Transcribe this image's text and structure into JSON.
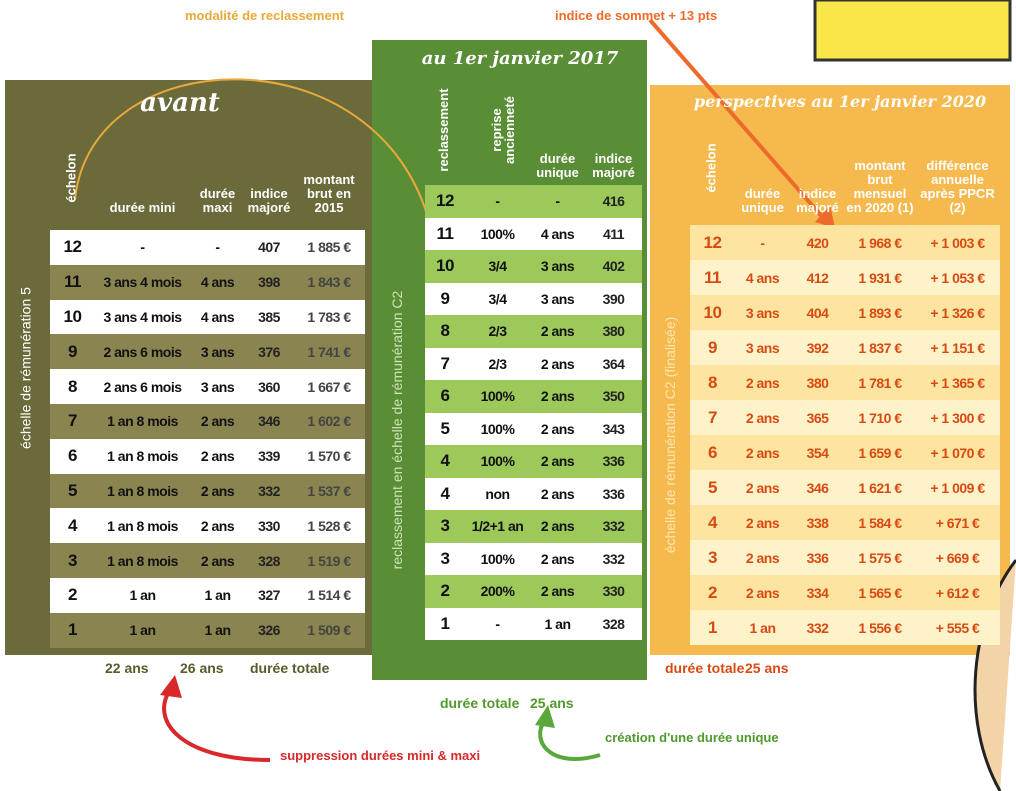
{
  "annotations": {
    "reclassement_mode": "modalité de reclassement",
    "sommet": "indice de sommet + 13 pts",
    "suppression": "suppression durées mini & maxi",
    "creation": "création d'une durée unique"
  },
  "avant": {
    "title": "avant",
    "side_label": "échelle de rémunération 5",
    "headers": [
      "échelon",
      "durée mini",
      "durée maxi",
      "indice majoré",
      "montant brut en 2015"
    ],
    "rows": [
      [
        "12",
        "-",
        "-",
        "407",
        "1 885 €"
      ],
      [
        "11",
        "3 ans 4 mois",
        "4 ans",
        "398",
        "1 843 €"
      ],
      [
        "10",
        "3 ans 4 mois",
        "4 ans",
        "385",
        "1 783 €"
      ],
      [
        "9",
        "2 ans 6 mois",
        "3 ans",
        "376",
        "1 741 €"
      ],
      [
        "8",
        "2 ans 6 mois",
        "3 ans",
        "360",
        "1 667 €"
      ],
      [
        "7",
        "1 an 8 mois",
        "2 ans",
        "346",
        "1 602 €"
      ],
      [
        "6",
        "1 an 8 mois",
        "2 ans",
        "339",
        "1 570 €"
      ],
      [
        "5",
        "1 an 8 mois",
        "2 ans",
        "332",
        "1 537 €"
      ],
      [
        "4",
        "1 an 8 mois",
        "2 ans",
        "330",
        "1 528 €"
      ],
      [
        "3",
        "1 an 8 mois",
        "2 ans",
        "328",
        "1 519 €"
      ],
      [
        "2",
        "1 an",
        "1 an",
        "327",
        "1 514 €"
      ],
      [
        "1",
        "1 an",
        "1 an",
        "326",
        "1 509 €"
      ]
    ],
    "footer": [
      "22 ans",
      "26 ans",
      "durée totale"
    ]
  },
  "janvier_2017": {
    "title": "au 1er janvier 2017",
    "side_label": "reclassement en échelle de rémunération C2",
    "headers": [
      "reclassement",
      "reprise ancienneté",
      "durée unique",
      "indice majoré"
    ],
    "rows": [
      [
        "12",
        "-",
        "-",
        "416"
      ],
      [
        "11",
        "100%",
        "4 ans",
        "411"
      ],
      [
        "10",
        "3/4",
        "3 ans",
        "402"
      ],
      [
        "9",
        "3/4",
        "3 ans",
        "390"
      ],
      [
        "8",
        "2/3",
        "2 ans",
        "380"
      ],
      [
        "7",
        "2/3",
        "2 ans",
        "364"
      ],
      [
        "6",
        "100%",
        "2 ans",
        "350"
      ],
      [
        "5",
        "100%",
        "2 ans",
        "343"
      ],
      [
        "4",
        "100%",
        "2 ans",
        "336"
      ],
      [
        "4",
        "non",
        "2 ans",
        "336"
      ],
      [
        "3",
        "1/2+1 an",
        "2 ans",
        "332"
      ],
      [
        "3",
        "100%",
        "2 ans",
        "332"
      ],
      [
        "2",
        "200%",
        "2 ans",
        "330"
      ],
      [
        "1",
        "-",
        "1 an",
        "328"
      ]
    ],
    "footer": [
      "durée totale",
      "25 ans"
    ]
  },
  "perspectives_2020": {
    "title": "perspectives au 1er janvier 2020",
    "side_label": "échelle de rémunération C2 (finalisée)",
    "headers": [
      "échelon",
      "durée unique",
      "indice majoré",
      "montant brut mensuel en 2020 (1)",
      "différence annuelle après PPCR (2)"
    ],
    "rows": [
      [
        "12",
        "-",
        "420",
        "1 968 €",
        "+ 1 003 €"
      ],
      [
        "11",
        "4 ans",
        "412",
        "1 931 €",
        "+ 1 053 €"
      ],
      [
        "10",
        "3 ans",
        "404",
        "1 893 €",
        "+ 1 326 €"
      ],
      [
        "9",
        "3 ans",
        "392",
        "1 837 €",
        "+ 1 151 €"
      ],
      [
        "8",
        "2 ans",
        "380",
        "1 781 €",
        "+ 1 365 €"
      ],
      [
        "7",
        "2 ans",
        "365",
        "1 710 €",
        "+ 1 300 €"
      ],
      [
        "6",
        "2 ans",
        "354",
        "1 659 €",
        "+ 1 070 €"
      ],
      [
        "5",
        "2 ans",
        "346",
        "1 621 €",
        "+ 1 009 €"
      ],
      [
        "4",
        "2 ans",
        "338",
        "1 584 €",
        "+ 671 €"
      ],
      [
        "3",
        "2 ans",
        "336",
        "1 575 €",
        "+ 669 €"
      ],
      [
        "2",
        "2 ans",
        "334",
        "1 565 €",
        "+ 612 €"
      ],
      [
        "1",
        "1 an",
        "332",
        "1 556 €",
        "+ 555 €"
      ]
    ],
    "footer": [
      "durée totale",
      "25 ans"
    ]
  }
}
